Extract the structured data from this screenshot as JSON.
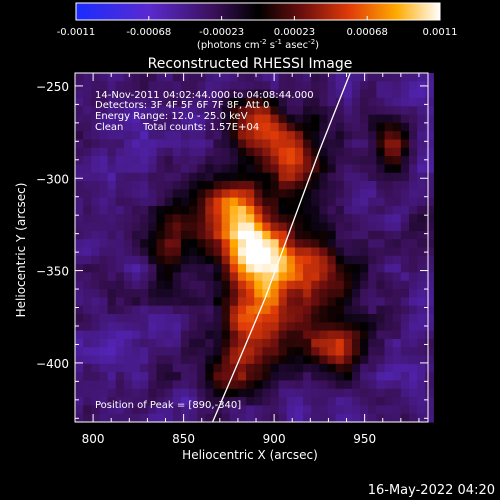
{
  "chart_data": {
    "type": "heatmap",
    "title": "Reconstructed RHESSI Image",
    "xlabel": "Heliocentric X (arcsec)",
    "ylabel": "Heliocentric Y (arcsec)",
    "xlim": [
      790,
      985
    ],
    "ylim": [
      -432,
      -243
    ],
    "xticks": [
      800,
      850,
      900,
      950
    ],
    "yticks": [
      -250,
      -300,
      -350,
      -400
    ],
    "colorbar": {
      "label_main": "(photons cm",
      "label_exp1": "-2",
      "label_mid1": " s",
      "label_exp2": "-1",
      "label_mid2": " asec",
      "label_exp3": "-2",
      "label_end": ")",
      "range": [
        -0.0011,
        0.0011
      ],
      "ticks": [
        "-0.0011",
        "-0.00068",
        "-0.00023",
        "0.00023",
        "0.00068",
        "0.0011"
      ],
      "colormap": "blue-purple-black-red-yellow-white"
    },
    "info": {
      "time": "14-Nov-2011 04:02:44.000 to 04:08:44.000",
      "detectors": "Detectors: 3F 4F 5F 6F 7F 8F, Att 0",
      "energy": "Energy Range: 12.0 - 25.0 keV",
      "method": "Clean",
      "counts": "Total counts: 1.57E+04"
    },
    "peak_label": "Position of Peak = [890,-340]",
    "peak": [
      890,
      -340
    ],
    "limb_curve": {
      "x": [
        866,
        880,
        895,
        910,
        925,
        942
      ],
      "y": [
        -432,
        -400,
        -365,
        -325,
        -285,
        -243
      ]
    },
    "emission_sources": [
      {
        "x": 893,
        "y": -340,
        "peak": 0.0011,
        "sigma": 13
      },
      {
        "x": 875,
        "y": -318,
        "peak": 0.0007,
        "sigma": 12
      },
      {
        "x": 893,
        "y": -375,
        "peak": 0.00055,
        "sigma": 17
      },
      {
        "x": 910,
        "y": -290,
        "peak": 0.00045,
        "sigma": 15
      },
      {
        "x": 925,
        "y": -350,
        "peak": 0.0004,
        "sigma": 14
      },
      {
        "x": 888,
        "y": -270,
        "peak": 0.00028,
        "sigma": 11
      },
      {
        "x": 935,
        "y": -390,
        "peak": 0.0003,
        "sigma": 12
      },
      {
        "x": 845,
        "y": -335,
        "peak": 0.00018,
        "sigma": 12
      },
      {
        "x": 965,
        "y": -280,
        "peak": 0.0002,
        "sigma": 9
      },
      {
        "x": 880,
        "y": -405,
        "peak": 0.00025,
        "sigma": 11
      }
    ],
    "background_level": -0.00035
  },
  "footer_date": "16-May-2022 04:20"
}
